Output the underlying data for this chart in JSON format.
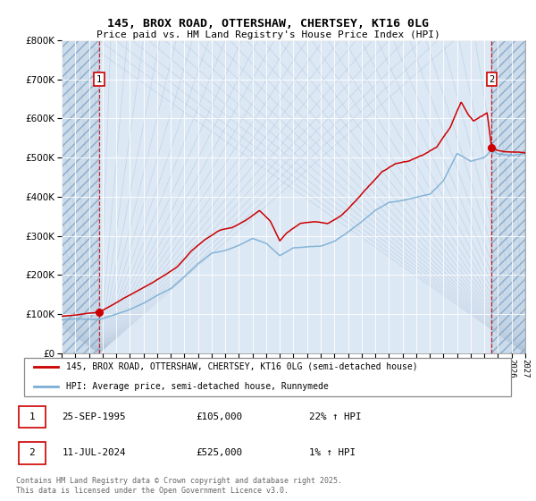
{
  "title1": "145, BROX ROAD, OTTERSHAW, CHERTSEY, KT16 0LG",
  "title2": "Price paid vs. HM Land Registry's House Price Index (HPI)",
  "background_color": "#ffffff",
  "plot_bg_color": "#dde8f5",
  "grid_color": "#ffffff",
  "line1_color": "#cc0000",
  "line2_color": "#7bafd4",
  "label1_text": "145, BROX ROAD, OTTERSHAW, CHERTSEY, KT16 0LG (semi-detached house)",
  "label2_text": "HPI: Average price, semi-detached house, Runnymede",
  "annotation1_date": "25-SEP-1995",
  "annotation1_price": "£105,000",
  "annotation1_hpi": "22% ↑ HPI",
  "annotation2_date": "11-JUL-2024",
  "annotation2_price": "£525,000",
  "annotation2_hpi": "1% ↑ HPI",
  "footer": "Contains HM Land Registry data © Crown copyright and database right 2025.\nThis data is licensed under the Open Government Licence v3.0.",
  "ylim_max": 800000,
  "ylim_min": 0,
  "xmin": 1993.0,
  "xmax": 2027.0,
  "t1_year": 1995.75,
  "t1_price": 105000,
  "t2_year": 2024.53,
  "t2_price": 525000
}
